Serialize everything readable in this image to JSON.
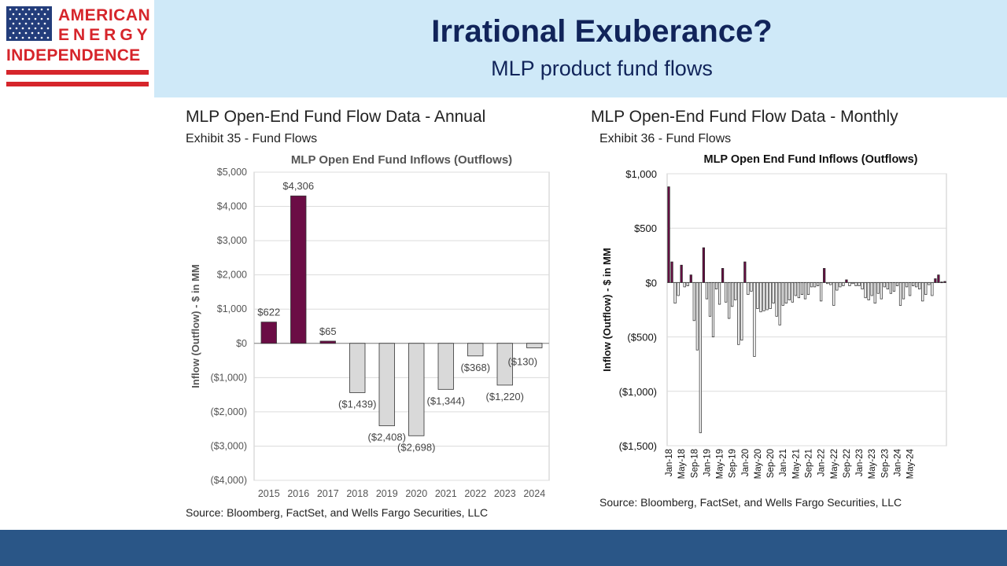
{
  "header": {
    "title": "Irrational Exuberance?",
    "subtitle": "MLP product fund flows"
  },
  "logo": {
    "line1": "AMERICAN",
    "line2": "ENERGY",
    "line3": "INDEPENDENCE",
    "colors": {
      "red": "#d6252b",
      "blue": "#233d7b"
    }
  },
  "left_panel": {
    "title": "MLP Open-End Fund Flow Data - Annual",
    "subtitle": "Exhibit 35 - Fund Flows",
    "source": "Source: Bloomberg, FactSet, and Wells Fargo Securities, LLC"
  },
  "right_panel": {
    "title": "MLP Open-End Fund Flow Data - Monthly",
    "subtitle": "Exhibit 36 - Fund Flows",
    "source": "Source: Bloomberg, FactSet, and Wells Fargo Securities, LLC"
  },
  "colors": {
    "positive": "#6b0d45",
    "negative": "#d9d9d9",
    "header_band": "#cfe9f8",
    "footer_band": "#2a5687",
    "title_text": "#11245a"
  },
  "chart_data": [
    {
      "type": "bar",
      "title": "MLP Open End Fund Inflows (Outflows)",
      "ylabel": "Inflow (Outflow) - $ in MM",
      "xlabel": "",
      "ylim": [
        -4000,
        5000
      ],
      "ytick_values": [
        5000,
        4000,
        3000,
        2000,
        1000,
        0,
        -1000,
        -2000,
        -3000,
        -4000
      ],
      "ytick_labels": [
        "$5,000",
        "$4,000",
        "$3,000",
        "$2,000",
        "$1,000",
        "$0",
        "($1,000)",
        "($2,000)",
        "($3,000)",
        "($4,000)"
      ],
      "categories": [
        "2015",
        "2016",
        "2017",
        "2018",
        "2019",
        "2020",
        "2021",
        "2022",
        "2023",
        "2024"
      ],
      "values": [
        622,
        4306,
        65,
        -1439,
        -2408,
        -2698,
        -1344,
        -368,
        -1220,
        -130
      ],
      "data_labels": [
        "$622",
        "$4,306",
        "$65",
        "($1,439)",
        "($2,408)",
        "($2,698)",
        "($1,344)",
        "($368)",
        "($1,220)",
        "($130)"
      ],
      "grid": true,
      "legend": "none"
    },
    {
      "type": "bar",
      "title": "MLP Open End Fund Inflows (Outflows)",
      "ylabel": "Inflow (Outflow) - $ in MM",
      "xlabel": "",
      "ylim": [
        -1500,
        1000
      ],
      "ytick_values": [
        1000,
        500,
        0,
        -500,
        -1000,
        -1500
      ],
      "ytick_labels": [
        "$1,000",
        "$500",
        "$0",
        "($500)",
        "($1,000)",
        "($1,500)"
      ],
      "x_start": "2018-01",
      "xtick_labels": [
        "Jan-18",
        "May-18",
        "Sep-18",
        "Jan-19",
        "May-19",
        "Sep-19",
        "Jan-20",
        "May-20",
        "Sep-20",
        "Jan-21",
        "May-21",
        "Sep-21",
        "Jan-22",
        "May-22",
        "Sep-22",
        "Jan-23",
        "May-23",
        "Sep-23",
        "Jan-24",
        "May-24"
      ],
      "values": [
        880,
        190,
        -190,
        -120,
        160,
        -40,
        -30,
        70,
        -350,
        -620,
        -1380,
        320,
        -150,
        -310,
        -500,
        -60,
        -200,
        130,
        -180,
        -330,
        -220,
        -160,
        -570,
        -530,
        190,
        -110,
        -80,
        -680,
        -240,
        -270,
        -260,
        -250,
        -240,
        -190,
        -310,
        -390,
        -210,
        -190,
        -160,
        -180,
        -120,
        -140,
        -110,
        -150,
        -110,
        -40,
        -40,
        -30,
        -170,
        130,
        -10,
        -20,
        -210,
        -70,
        -40,
        -30,
        25,
        -30,
        -10,
        -30,
        -30,
        -60,
        -140,
        -160,
        -120,
        -190,
        -100,
        -150,
        -40,
        -60,
        -100,
        -80,
        -30,
        -210,
        -150,
        -40,
        -120,
        -30,
        -40,
        -60,
        -170,
        -110,
        -20,
        -120,
        35,
        70,
        5,
        10
      ],
      "grid": true,
      "legend": "none"
    }
  ]
}
